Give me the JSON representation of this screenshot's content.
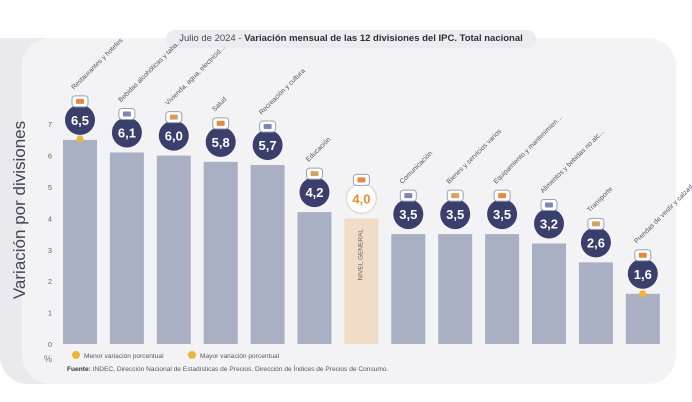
{
  "header": {
    "date": "Julio de 2024",
    "title": "Variación mensual de las 12 divisiones del IPC. Total nacional"
  },
  "y_axis_label": "Variación por divisiones",
  "y_unit": "%",
  "legend": {
    "min": "Menor variación porcentual",
    "max": "Mayor variación porcentual"
  },
  "footer": {
    "label": "Fuente:",
    "text": "INDEC, Dirección Nacional de Estadísticas de Precios. Dirección de Índices de Precios de Consumo."
  },
  "colors": {
    "bar": "#aab0c3",
    "highlight_bar": "#f1dcc8",
    "badge": "#3a3f6b",
    "highlight_text": "#f08c2a",
    "accent_dot": "#f0b43a"
  },
  "chart_data": {
    "type": "bar",
    "categories": [
      "Restaurantes y hoteles",
      "Bebidas alcohólicas y tabaco",
      "Vivienda, agua, electricidad, gas y otros combustibles",
      "Salud",
      "Recreación y cultura",
      "Educación",
      "NIVEL GENERAL",
      "Comunicación",
      "Bienes y servicios varios",
      "Equipamiento y mantenimiento del hogar",
      "Alimentos y bebidas no alcohólicas",
      "Transporte",
      "Prendas de vestir y calzado"
    ],
    "values": [
      6.5,
      6.1,
      6.0,
      5.8,
      5.7,
      4.2,
      4.0,
      3.5,
      3.5,
      3.5,
      3.2,
      2.6,
      1.6
    ],
    "value_labels": [
      "6,5",
      "6,1",
      "6,0",
      "5,8",
      "5,7",
      "4,2",
      "4,0",
      "3,5",
      "3,5",
      "3,5",
      "3,2",
      "2,6",
      "1,6"
    ],
    "highlight_index": 6,
    "max_index": 0,
    "min_index": 12,
    "yticks": [
      0,
      1,
      2,
      3,
      4,
      5,
      6,
      7
    ],
    "ylim": [
      0,
      7.4
    ],
    "icons": [
      "utensils-icon",
      "wine-glass-icon",
      "lightbulb-icon",
      "first-aid-kit-icon",
      "sun-umbrella-icon",
      "book-icon",
      "shopping-bag-icon",
      "smartphone-icon",
      "barber-tools-icon",
      "pot-icon",
      "grocery-icon",
      "bus-icon",
      "tshirt-icon"
    ]
  }
}
